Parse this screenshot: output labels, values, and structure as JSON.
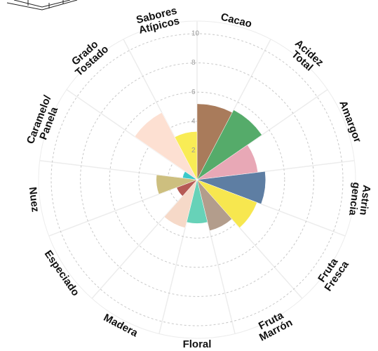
{
  "chart_data": {
    "type": "polar-bar",
    "categories": [
      "Cacao",
      "Acidez\nTotal",
      "Amargor",
      "Astrin\ngencia",
      "Fruta\nFresca",
      "Fruta\nMarrón",
      "Floral",
      "Madera",
      "Especiado",
      "Nuez",
      "Caramelo/\nPanela",
      "Grado\nTostado",
      "Sabores\nAtípicos"
    ],
    "values": [
      5.2,
      5.4,
      4.2,
      4.7,
      4.4,
      3.6,
      3.0,
      3.4,
      1.5,
      2.8,
      1.0,
      5.2,
      3.3
    ],
    "colors": [
      "#a97b5b",
      "#55ab6a",
      "#e8a8b6",
      "#5e7ea3",
      "#f7e74f",
      "#b39d8c",
      "#67d2b8",
      "#f6d9c8",
      "#b65a55",
      "#cdbf7f",
      "#3cc9c9",
      "#fde0d2",
      "#f9ec55"
    ],
    "ylim": [
      0,
      10
    ],
    "yticks": [
      2,
      4,
      6,
      8,
      10
    ],
    "grid": true
  }
}
